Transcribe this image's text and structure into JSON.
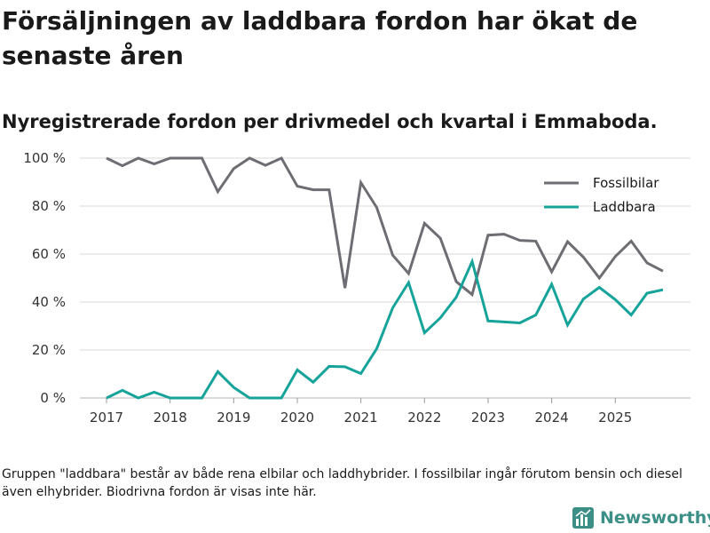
{
  "header": {
    "title": "Försäljningen av laddbara fordon har ökat de senaste åren",
    "subtitle": "Nyregistrerade fordon per drivmedel och kvartal i Emmaboda."
  },
  "footer": {
    "note": "Gruppen \"laddbara\" består av både rena elbilar och laddhybrider. I fossilbilar ingår förutom bensin och diesel även elhybrider. Biodrivna fordon är visas inte här.",
    "brand": "Newsworthy"
  },
  "colors": {
    "fossil": "#6e6d73",
    "laddbara": "#15a39a",
    "grid": "#d9d9d9",
    "brand": "#3c8f86"
  },
  "chart_data": {
    "type": "line",
    "title": "Nyregistrerade fordon per drivmedel och kvartal i Emmaboda.",
    "xlabel": "",
    "ylabel": "",
    "x": [
      2017.0,
      2017.25,
      2017.5,
      2017.75,
      2018.0,
      2018.25,
      2018.5,
      2018.75,
      2019.0,
      2019.25,
      2019.5,
      2019.75,
      2020.0,
      2020.25,
      2020.5,
      2020.75,
      2021.0,
      2021.25,
      2021.5,
      2021.75,
      2022.0,
      2022.25,
      2022.5,
      2022.75,
      2023.0,
      2023.25,
      2023.5,
      2023.75,
      2024.0,
      2024.25,
      2024.5,
      2024.75,
      2025.0,
      2025.25,
      2025.5,
      2025.75
    ],
    "ylim": [
      0,
      100
    ],
    "yticks": [
      0,
      20,
      40,
      60,
      80,
      100
    ],
    "ytick_labels": [
      "0 %",
      "20 %",
      "40 %",
      "60 %",
      "80 %",
      "100 %"
    ],
    "xticks": [
      2017,
      2018,
      2019,
      2020,
      2021,
      2022,
      2023,
      2024,
      2025
    ],
    "xtick_labels": [
      "2017",
      "2018",
      "2019",
      "2020",
      "2021",
      "2022",
      "2023",
      "2024",
      "2025"
    ],
    "legend_position": "top-right",
    "series": [
      {
        "name": "Fossilbilar",
        "color": "#6e6d73",
        "values": [
          100,
          96.8,
          100,
          97.6,
          100,
          100,
          100,
          86,
          95.6,
          100,
          97,
          100,
          88.3,
          86.8,
          86.8,
          45.8,
          89.8,
          79.4,
          59.5,
          51.9,
          72.8,
          66.6,
          48.5,
          43.1,
          67.9,
          68.3,
          65.7,
          65.4,
          52.6,
          65.2,
          58.7,
          50,
          59,
          65.4,
          56.3,
          52.9
        ]
      },
      {
        "name": "Laddbara",
        "color": "#15a39a",
        "values": [
          0,
          3.2,
          0,
          2.4,
          0,
          0,
          0,
          11,
          4.4,
          0,
          0,
          0,
          11.7,
          6.6,
          13.2,
          13,
          10.2,
          20.6,
          37.6,
          48.1,
          27.2,
          33.4,
          42,
          56.9,
          32.1,
          31.7,
          31.3,
          34.6,
          47.4,
          30.4,
          41.3,
          46.1,
          41,
          34.6,
          43.7,
          45.1
        ]
      }
    ]
  }
}
